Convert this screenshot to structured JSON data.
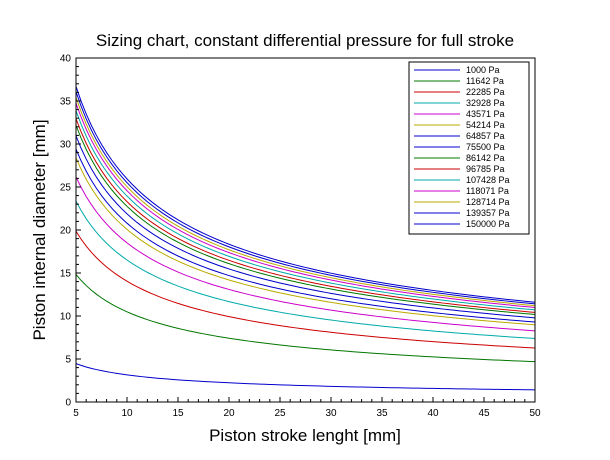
{
  "chart_data": {
    "type": "line",
    "title": "Sizing chart, constant differential pressure for full stroke",
    "xlabel": "Piston stroke lenght [mm]",
    "ylabel": "Piston internal diameter [mm]",
    "xlim": [
      5,
      50
    ],
    "ylim": [
      0,
      40
    ],
    "xticks": [
      "5",
      "10",
      "15",
      "20",
      "25",
      "30",
      "35",
      "40",
      "45",
      "50"
    ],
    "yticks": [
      "0",
      "5",
      "10",
      "15",
      "20",
      "25",
      "30",
      "35",
      "40"
    ],
    "grid": false,
    "legend_position": "top-right",
    "x": [
      5,
      50
    ],
    "curve_model": "y = k / sqrt(x)",
    "series": [
      {
        "name": "1000 Pa",
        "color": "#0000cc",
        "values": [
          4.5,
          1.4
        ]
      },
      {
        "name": "11642 Pa",
        "color": "#007700",
        "values": [
          14.8,
          4.7
        ]
      },
      {
        "name": "22285 Pa",
        "color": "#cc0000",
        "values": [
          19.8,
          6.3
        ]
      },
      {
        "name": "32928 Pa",
        "color": "#00aaaa",
        "values": [
          23.3,
          7.4
        ]
      },
      {
        "name": "43571 Pa",
        "color": "#cc00cc",
        "values": [
          26.1,
          8.3
        ]
      },
      {
        "name": "54214 Pa",
        "color": "#bbaa00",
        "values": [
          28.3,
          9.0
        ]
      },
      {
        "name": "64857 Pa",
        "color": "#0000cc",
        "values": [
          29.4,
          9.3
        ]
      },
      {
        "name": "75500 Pa",
        "color": "#0000cc",
        "values": [
          30.9,
          9.8
        ]
      },
      {
        "name": "86142 Pa",
        "color": "#007700",
        "values": [
          32.1,
          10.2
        ]
      },
      {
        "name": "96785 Pa",
        "color": "#cc0000",
        "values": [
          33.0,
          10.4
        ]
      },
      {
        "name": "107428 Pa",
        "color": "#00aaaa",
        "values": [
          33.9,
          10.7
        ]
      },
      {
        "name": "118071 Pa",
        "color": "#cc00cc",
        "values": [
          34.7,
          11.0
        ]
      },
      {
        "name": "128714 Pa",
        "color": "#bbaa00",
        "values": [
          35.4,
          11.2
        ]
      },
      {
        "name": "139357 Pa",
        "color": "#0000cc",
        "values": [
          36.1,
          11.4
        ]
      },
      {
        "name": "150000 Pa",
        "color": "#0000cc",
        "values": [
          36.7,
          11.6
        ]
      }
    ]
  }
}
